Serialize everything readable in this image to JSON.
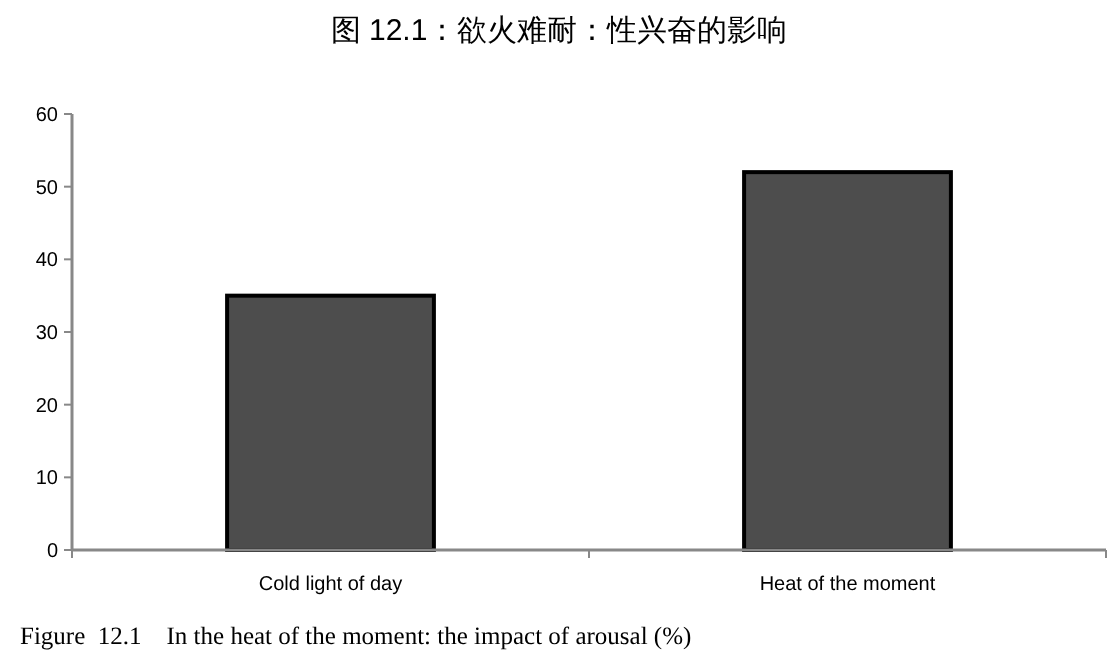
{
  "chart_data": {
    "type": "bar",
    "title": "图 12.1：欲火难耐：性兴奋的影响",
    "categories": [
      "Cold light of day",
      "Heat of the moment"
    ],
    "values": [
      35,
      52
    ],
    "color": "#4d4d4d",
    "ylim": [
      0,
      60
    ],
    "yticks": [
      0,
      10,
      20,
      30,
      40,
      50,
      60
    ],
    "grid": false,
    "annotations": [
      "Figure  12.1    In the heat of the moment: the impact of arousal (%)"
    ]
  }
}
